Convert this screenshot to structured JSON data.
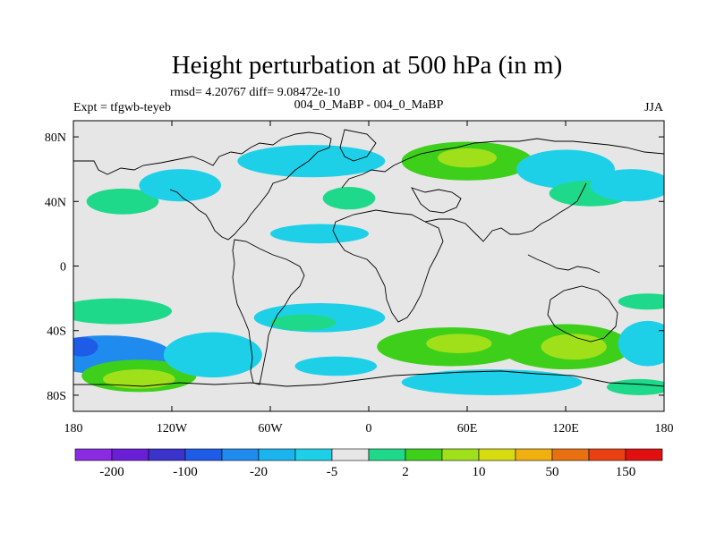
{
  "chart_data": {
    "type": "heatmap",
    "title": "Height perturbation at 500 hPa (in m)",
    "subtitle_stats": "rmsd= 4.20767 diff= 9.08472e-10",
    "experiment_label": "Expt = tfgwb-teyeb",
    "comparison_label": "004_0_MaBP - 004_0_MaBP",
    "season": "JJA",
    "x_axis": {
      "range": [
        -180,
        180
      ],
      "ticks": [
        -180,
        -120,
        -60,
        0,
        60,
        120,
        180
      ],
      "tick_labels": [
        "180",
        "120W",
        "60W",
        "0",
        "60E",
        "120E",
        "180"
      ]
    },
    "y_axis": {
      "range": [
        -90,
        90
      ],
      "ticks": [
        80,
        40,
        0,
        -40,
        -80
      ],
      "tick_labels": [
        "80N",
        "40N",
        "0",
        "40S",
        "80S"
      ]
    },
    "colorbar": {
      "colors": [
        "#8a2be2",
        "#6a1fd6",
        "#3a34cc",
        "#1e5be6",
        "#1f8bef",
        "#1ab5ef",
        "#1dd0e8",
        "#e6e6e6",
        "#1fd98a",
        "#3ecf1a",
        "#9fe01a",
        "#d6dc10",
        "#f0b010",
        "#e87010",
        "#e84010",
        "#e01010"
      ],
      "labels": [
        "-200",
        "-100",
        "-20",
        "-5",
        "2",
        "10",
        "50",
        "150"
      ]
    },
    "field_anomalies": [
      {
        "lon": -150,
        "lat": 40,
        "rx": 22,
        "ry": 8,
        "value": 5
      },
      {
        "lon": -115,
        "lat": 50,
        "rx": 25,
        "ry": 10,
        "value": -3
      },
      {
        "lon": -35,
        "lat": 65,
        "rx": 45,
        "ry": 10,
        "value": -3
      },
      {
        "lon": -12,
        "lat": 42,
        "rx": 16,
        "ry": 7,
        "value": 5
      },
      {
        "lon": -30,
        "lat": 20,
        "rx": 30,
        "ry": 6,
        "value": -3
      },
      {
        "lon": 60,
        "lat": 65,
        "rx": 40,
        "ry": 12,
        "value": 8
      },
      {
        "lon": 60,
        "lat": 67,
        "rx": 18,
        "ry": 6,
        "value": 25
      },
      {
        "lon": 120,
        "lat": 60,
        "rx": 30,
        "ry": 12,
        "value": -3
      },
      {
        "lon": 135,
        "lat": 45,
        "rx": 25,
        "ry": 8,
        "value": 5
      },
      {
        "lon": 160,
        "lat": 50,
        "rx": 25,
        "ry": 10,
        "value": -3
      },
      {
        "lon": -155,
        "lat": -28,
        "rx": 35,
        "ry": 8,
        "value": 5
      },
      {
        "lon": -160,
        "lat": -55,
        "rx": 40,
        "ry": 12,
        "value": -8
      },
      {
        "lon": -175,
        "lat": -50,
        "rx": 10,
        "ry": 6,
        "value": -20
      },
      {
        "lon": -140,
        "lat": -68,
        "rx": 35,
        "ry": 10,
        "value": 8
      },
      {
        "lon": -140,
        "lat": -70,
        "rx": 22,
        "ry": 6,
        "value": 25
      },
      {
        "lon": -95,
        "lat": -55,
        "rx": 30,
        "ry": 14,
        "value": -3
      },
      {
        "lon": -30,
        "lat": -32,
        "rx": 40,
        "ry": 9,
        "value": -3
      },
      {
        "lon": -40,
        "lat": -35,
        "rx": 20,
        "ry": 5,
        "value": 5
      },
      {
        "lon": -20,
        "lat": -62,
        "rx": 25,
        "ry": 6,
        "value": -3
      },
      {
        "lon": 50,
        "lat": -50,
        "rx": 45,
        "ry": 12,
        "value": 8
      },
      {
        "lon": 55,
        "lat": -48,
        "rx": 20,
        "ry": 6,
        "value": 25
      },
      {
        "lon": 120,
        "lat": -50,
        "rx": 40,
        "ry": 14,
        "value": 8
      },
      {
        "lon": 125,
        "lat": -50,
        "rx": 20,
        "ry": 8,
        "value": 25
      },
      {
        "lon": 75,
        "lat": -72,
        "rx": 55,
        "ry": 8,
        "value": -3
      },
      {
        "lon": 170,
        "lat": -48,
        "rx": 18,
        "ry": 14,
        "value": -3
      },
      {
        "lon": 165,
        "lat": -75,
        "rx": 20,
        "ry": 5,
        "value": 5
      },
      {
        "lon": 170,
        "lat": -22,
        "rx": 18,
        "ry": 5,
        "value": 5
      }
    ]
  }
}
